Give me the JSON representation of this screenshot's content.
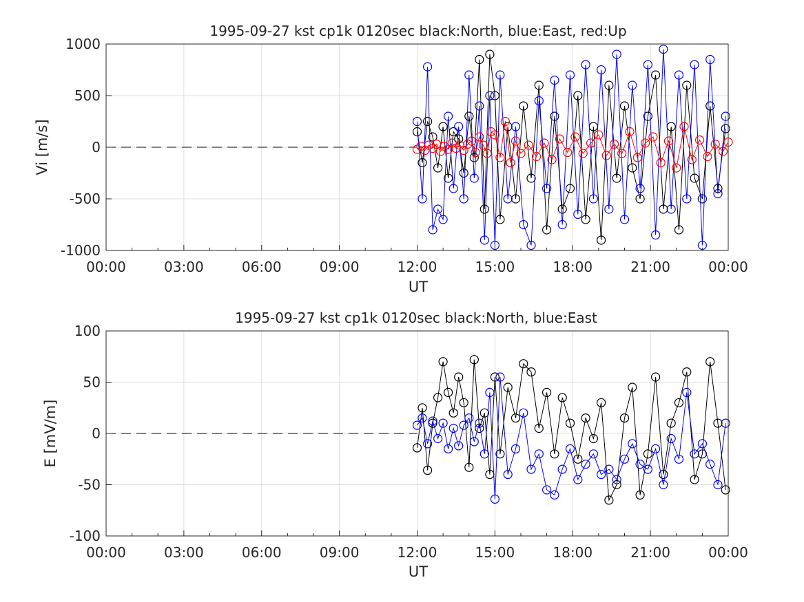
{
  "chart_data": [
    {
      "type": "scatter",
      "title": "1995-09-27 kst cp1k 0120sec black:North, blue:East, red:Up",
      "xlabel": "UT",
      "ylabel": "Vi [m/s]",
      "ylim": [
        -1000,
        1000
      ],
      "yticks": [
        "-1000",
        "-500",
        "0",
        "500",
        "1000"
      ],
      "xlim": [
        0,
        24
      ],
      "xticks": [
        "00:00",
        "03:00",
        "06:00",
        "09:00",
        "12:00",
        "15:00",
        "18:00",
        "21:00",
        "00:00"
      ],
      "grid": true,
      "zero_line": 0,
      "series": [
        {
          "name": "North",
          "color": "#000000",
          "x": [
            12.0,
            12.2,
            12.4,
            12.6,
            12.8,
            13.0,
            13.2,
            13.4,
            13.6,
            13.8,
            14.0,
            14.2,
            14.4,
            14.6,
            14.8,
            15.0,
            15.2,
            15.5,
            15.8,
            16.1,
            16.4,
            16.7,
            17.0,
            17.3,
            17.6,
            17.9,
            18.2,
            18.5,
            18.8,
            19.1,
            19.4,
            19.7,
            20.0,
            20.3,
            20.6,
            20.9,
            21.2,
            21.5,
            21.8,
            22.1,
            22.4,
            22.7,
            23.0,
            23.3,
            23.6,
            23.9
          ],
          "y": [
            150,
            -150,
            250,
            100,
            -200,
            200,
            -300,
            150,
            80,
            -250,
            300,
            -100,
            850,
            -600,
            900,
            500,
            -700,
            200,
            -500,
            400,
            -300,
            600,
            -800,
            300,
            -600,
            -400,
            500,
            -700,
            200,
            -900,
            600,
            -300,
            400,
            -200,
            -500,
            300,
            700,
            -600,
            200,
            -800,
            600,
            -300,
            -500,
            400,
            -400,
            180
          ]
        },
        {
          "name": "East",
          "color": "#0000ff",
          "x": [
            12.0,
            12.2,
            12.4,
            12.6,
            12.8,
            13.0,
            13.2,
            13.4,
            13.6,
            13.8,
            14.0,
            14.2,
            14.4,
            14.6,
            14.8,
            15.0,
            15.2,
            15.5,
            15.8,
            16.1,
            16.4,
            16.7,
            17.0,
            17.3,
            17.6,
            17.9,
            18.2,
            18.5,
            18.8,
            19.1,
            19.4,
            19.7,
            20.0,
            20.3,
            20.6,
            20.9,
            21.2,
            21.5,
            21.8,
            22.1,
            22.4,
            22.7,
            23.0,
            23.3,
            23.6,
            23.9
          ],
          "y": [
            250,
            -500,
            780,
            -800,
            -600,
            -700,
            300,
            -400,
            200,
            -500,
            700,
            -300,
            400,
            -900,
            500,
            -950,
            700,
            -500,
            200,
            -750,
            -950,
            450,
            -400,
            650,
            -750,
            700,
            -650,
            800,
            -500,
            750,
            -600,
            900,
            -700,
            600,
            -400,
            800,
            -850,
            950,
            -600,
            700,
            -500,
            800,
            -950,
            850,
            -450,
            300
          ]
        },
        {
          "name": "Up",
          "color": "#ff0000",
          "x": [
            12.0,
            12.15,
            12.3,
            12.45,
            12.6,
            12.75,
            12.9,
            13.05,
            13.2,
            13.35,
            13.5,
            13.65,
            13.8,
            13.95,
            14.1,
            14.25,
            14.4,
            14.55,
            14.7,
            14.85,
            15.0,
            15.2,
            15.4,
            15.6,
            15.8,
            16.0,
            16.3,
            16.6,
            16.9,
            17.2,
            17.5,
            17.8,
            18.1,
            18.4,
            18.7,
            19.0,
            19.3,
            19.6,
            19.9,
            20.2,
            20.5,
            20.8,
            21.1,
            21.4,
            21.7,
            22.0,
            22.3,
            22.6,
            22.9,
            23.2,
            23.5,
            23.8,
            24.0
          ],
          "y": [
            -20,
            10,
            -30,
            20,
            -10,
            30,
            -40,
            10,
            -20,
            40,
            -10,
            20,
            -30,
            30,
            60,
            -50,
            100,
            20,
            -60,
            150,
            120,
            -100,
            250,
            -150,
            60,
            -60,
            20,
            -90,
            40,
            -120,
            80,
            -50,
            100,
            -60,
            40,
            120,
            -80,
            30,
            -60,
            150,
            -100,
            40,
            100,
            -150,
            60,
            -200,
            200,
            -120,
            70,
            -90,
            30,
            -40,
            50
          ]
        }
      ]
    },
    {
      "type": "scatter",
      "title": "1995-09-27 kst cp1k 0120sec black:North, blue:East",
      "xlabel": "UT",
      "ylabel": "E [mV/m]",
      "ylim": [
        -100,
        100
      ],
      "yticks": [
        "-100",
        "-50",
        "0",
        "50",
        "100"
      ],
      "xlim": [
        0,
        24
      ],
      "xticks": [
        "00:00",
        "03:00",
        "06:00",
        "09:00",
        "12:00",
        "15:00",
        "18:00",
        "21:00",
        "00:00"
      ],
      "grid": true,
      "zero_line": 0,
      "series": [
        {
          "name": "North",
          "color": "#000000",
          "x": [
            12.0,
            12.2,
            12.4,
            12.6,
            12.8,
            13.0,
            13.2,
            13.4,
            13.6,
            13.8,
            14.0,
            14.2,
            14.4,
            14.6,
            14.8,
            15.0,
            15.2,
            15.5,
            15.8,
            16.1,
            16.4,
            16.7,
            17.0,
            17.3,
            17.6,
            17.9,
            18.2,
            18.5,
            18.8,
            19.1,
            19.4,
            19.7,
            20.0,
            20.3,
            20.6,
            20.9,
            21.2,
            21.5,
            21.8,
            22.1,
            22.4,
            22.7,
            23.0,
            23.3,
            23.6,
            23.9
          ],
          "y": [
            -14,
            25,
            -36,
            10,
            35,
            70,
            40,
            20,
            55,
            30,
            -33,
            72,
            5,
            20,
            -40,
            55,
            -20,
            45,
            15,
            68,
            60,
            5,
            40,
            -20,
            35,
            10,
            -25,
            15,
            -5,
            30,
            -65,
            -50,
            15,
            45,
            -60,
            -20,
            55,
            -40,
            10,
            30,
            60,
            -45,
            -20,
            70,
            10,
            -55
          ]
        },
        {
          "name": "East",
          "color": "#0000ff",
          "x": [
            12.0,
            12.2,
            12.4,
            12.6,
            12.8,
            13.0,
            13.2,
            13.4,
            13.6,
            13.8,
            14.0,
            14.2,
            14.4,
            14.6,
            14.8,
            15.0,
            15.2,
            15.5,
            15.8,
            16.1,
            16.4,
            16.7,
            17.0,
            17.3,
            17.6,
            17.9,
            18.2,
            18.5,
            18.8,
            19.1,
            19.4,
            19.7,
            20.0,
            20.3,
            20.6,
            20.9,
            21.2,
            21.5,
            21.8,
            22.1,
            22.4,
            22.7,
            23.0,
            23.3,
            23.6,
            23.9
          ],
          "y": [
            8,
            15,
            -10,
            12,
            -5,
            10,
            -15,
            5,
            -12,
            8,
            15,
            -8,
            10,
            -20,
            40,
            -64,
            55,
            -40,
            -15,
            20,
            -35,
            -20,
            -55,
            -60,
            -35,
            -15,
            -45,
            -30,
            -20,
            -40,
            -35,
            -45,
            -25,
            -10,
            -30,
            -35,
            -15,
            -50,
            -5,
            -25,
            40,
            -20,
            -10,
            -30,
            -50,
            10
          ]
        }
      ]
    }
  ]
}
